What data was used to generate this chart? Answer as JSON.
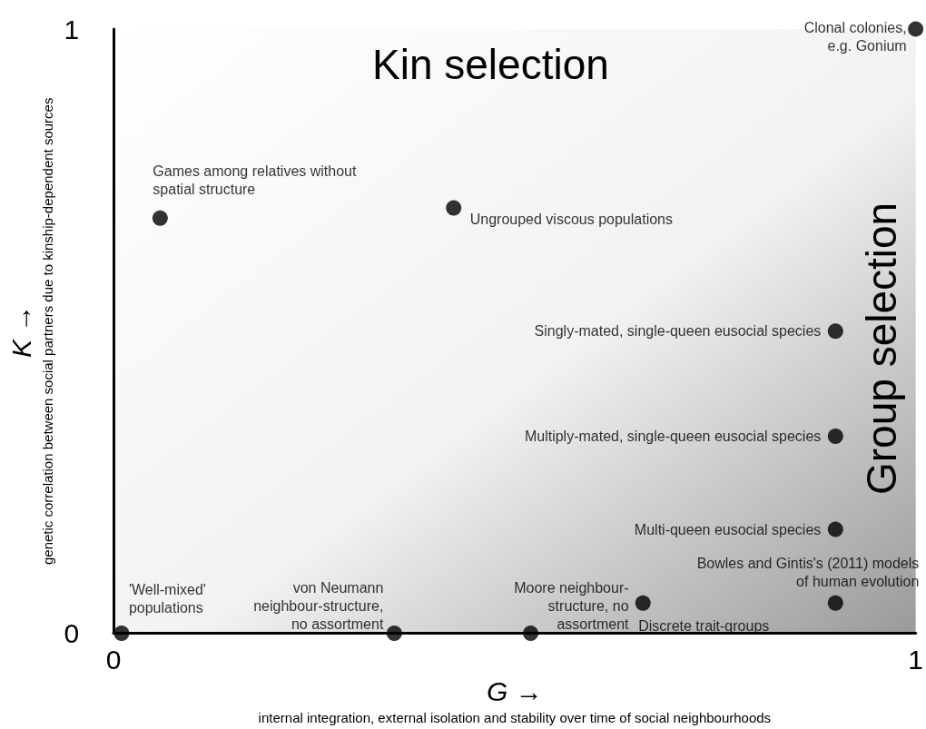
{
  "chart_data": {
    "type": "scatter",
    "xlabel": "G →\ninternal integration, external isolation and stability over time of social neighbourhoods",
    "ylabel": "K →\ngenetic correlation between social partners due to kinship-dependent sources",
    "x": [
      1.0,
      0.058,
      0.424,
      0.9,
      0.9,
      0.9,
      0.9,
      0.66,
      0.01,
      0.35,
      0.52
    ],
    "series": [
      {
        "color": "#000000",
        "values": [
          1.0,
          0.687,
          0.704,
          0.5,
          0.326,
          0.172,
          0.05,
          0.05,
          0.0,
          0.0,
          0.0
        ]
      }
    ],
    "marker": "circle",
    "xlim": [
      0,
      1
    ],
    "ylim": [
      0,
      1
    ],
    "xticks": [
      0,
      1
    ],
    "yticks": [
      0,
      1
    ],
    "grid": false,
    "annotations": [
      {
        "text": "Clonal colonies,\ne.g. Gonium",
        "x": 1.0,
        "y": 1.0
      },
      {
        "text": "Games among relatives without\nspatial structure",
        "x": 0.058,
        "y": 0.687
      },
      {
        "text": "Ungrouped viscous populations",
        "x": 0.424,
        "y": 0.704
      },
      {
        "text": "Singly-mated, single-queen eusocial species",
        "x": 0.9,
        "y": 0.5
      },
      {
        "text": "Multiply-mated, single-queen eusocial species",
        "x": 0.9,
        "y": 0.326
      },
      {
        "text": "Multi-queen eusocial species",
        "x": 0.9,
        "y": 0.172
      },
      {
        "text": "Bowles and Gintis's (2011) models\nof human evolution",
        "x": 0.9,
        "y": 0.05
      },
      {
        "text": "Discrete trait-groups",
        "x": 0.66,
        "y": 0.05
      },
      {
        "text": "'Well-mixed'\npopulations",
        "x": 0.01,
        "y": 0.0
      },
      {
        "text": "von Neumann\nneighbour-structure,\nno assortment",
        "x": 0.35,
        "y": 0.0
      },
      {
        "text": "Moore neighbour-\nstructure, no\nassortment",
        "x": 0.52,
        "y": 0.0
      },
      "Kin selection",
      "Group selection"
    ]
  }
}
